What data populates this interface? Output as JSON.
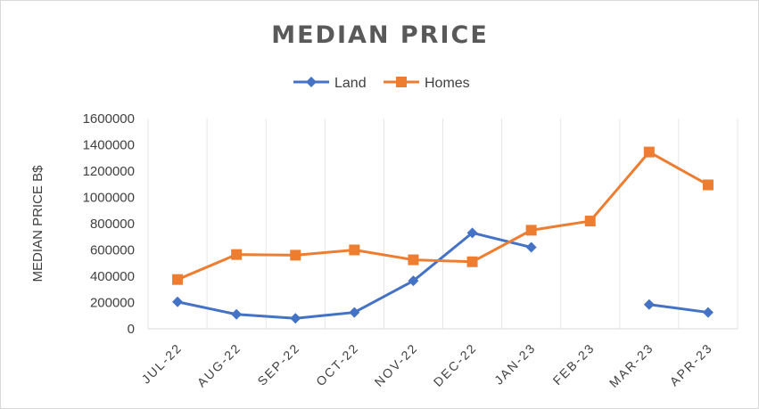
{
  "chart_data": {
    "type": "line",
    "title": "MEDIAN PRICE",
    "ylabel": "MEDIAN PRICE B$",
    "xlabel": "",
    "ylim": [
      0,
      1600000
    ],
    "yticks": [
      0,
      200000,
      400000,
      600000,
      800000,
      1000000,
      1200000,
      1400000,
      1600000
    ],
    "categories": [
      "JUL-22",
      "AUG-22",
      "SEP-22",
      "OCT-22",
      "NOV-22",
      "DEC-22",
      "JAN-23",
      "FEB-23",
      "MAR-23",
      "APR-23"
    ],
    "grid": "vertical",
    "legend": "top",
    "series": [
      {
        "name": "Land",
        "color": "#4472c4",
        "marker": "diamond",
        "values": [
          205000,
          110000,
          80000,
          125000,
          365000,
          730000,
          620000,
          null,
          185000,
          125000
        ]
      },
      {
        "name": "Homes",
        "color": "#ed7d31",
        "marker": "square",
        "values": [
          375000,
          565000,
          560000,
          600000,
          525000,
          510000,
          750000,
          820000,
          1345000,
          1095000
        ]
      }
    ]
  }
}
